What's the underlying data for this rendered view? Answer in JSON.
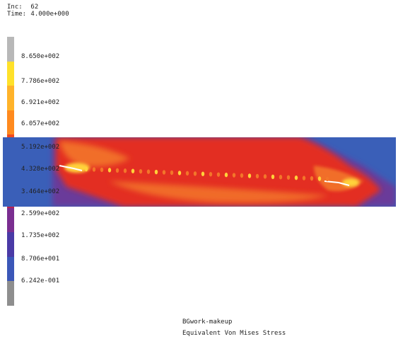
{
  "header": {
    "inc_label": "Inc:",
    "inc_value": "62",
    "time_label": "Time:",
    "time_value": "4.000e+000"
  },
  "legend": {
    "labels": [
      "8.650e+002",
      "7.786e+002",
      "6.921e+002",
      "6.057e+002",
      "5.192e+002",
      "4.328e+002",
      "3.464e+002",
      "2.599e+002",
      "1.735e+002",
      "8.706e+001",
      "6.242e-001"
    ],
    "colors": [
      "#b8b8b8",
      "#ffe12a",
      "#ffb32a",
      "#ff8a1e",
      "#f24a1e",
      "#dc2a22",
      "#b92250",
      "#7a2e90",
      "#4a3aa6",
      "#3b57b8",
      "#8e8e8e"
    ]
  },
  "plot": {
    "colors": {
      "blue": "#3a5fb8",
      "purple": "#6a3a9a",
      "red": "#e32e24",
      "orange": "#f3762a",
      "yellow": "#ffd23a",
      "white": "#ffffff"
    }
  },
  "footer": {
    "job_name": "BGwork-makeup",
    "result_label": "Equivalent Von Mises Stress"
  }
}
